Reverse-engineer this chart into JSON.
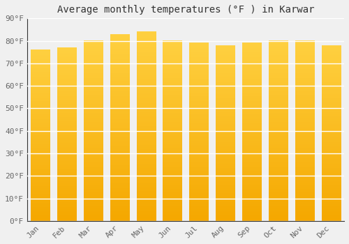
{
  "title": "Average monthly temperatures (°F ) in Karwar",
  "months": [
    "Jan",
    "Feb",
    "Mar",
    "Apr",
    "May",
    "Jun",
    "Jul",
    "Aug",
    "Sep",
    "Oct",
    "Nov",
    "Dec"
  ],
  "values": [
    76,
    77,
    80,
    83,
    84,
    80,
    79,
    78,
    79,
    80,
    80,
    78
  ],
  "bar_color_top": "#FFD040",
  "bar_color_bottom": "#F5A800",
  "background_color": "#f0f0f0",
  "grid_color": "#ffffff",
  "ylim": [
    0,
    90
  ],
  "yticks": [
    0,
    10,
    20,
    30,
    40,
    50,
    60,
    70,
    80,
    90
  ],
  "ytick_labels": [
    "0°F",
    "10°F",
    "20°F",
    "30°F",
    "40°F",
    "50°F",
    "60°F",
    "70°F",
    "80°F",
    "90°F"
  ],
  "title_fontsize": 10,
  "tick_fontsize": 8,
  "font_family": "monospace"
}
